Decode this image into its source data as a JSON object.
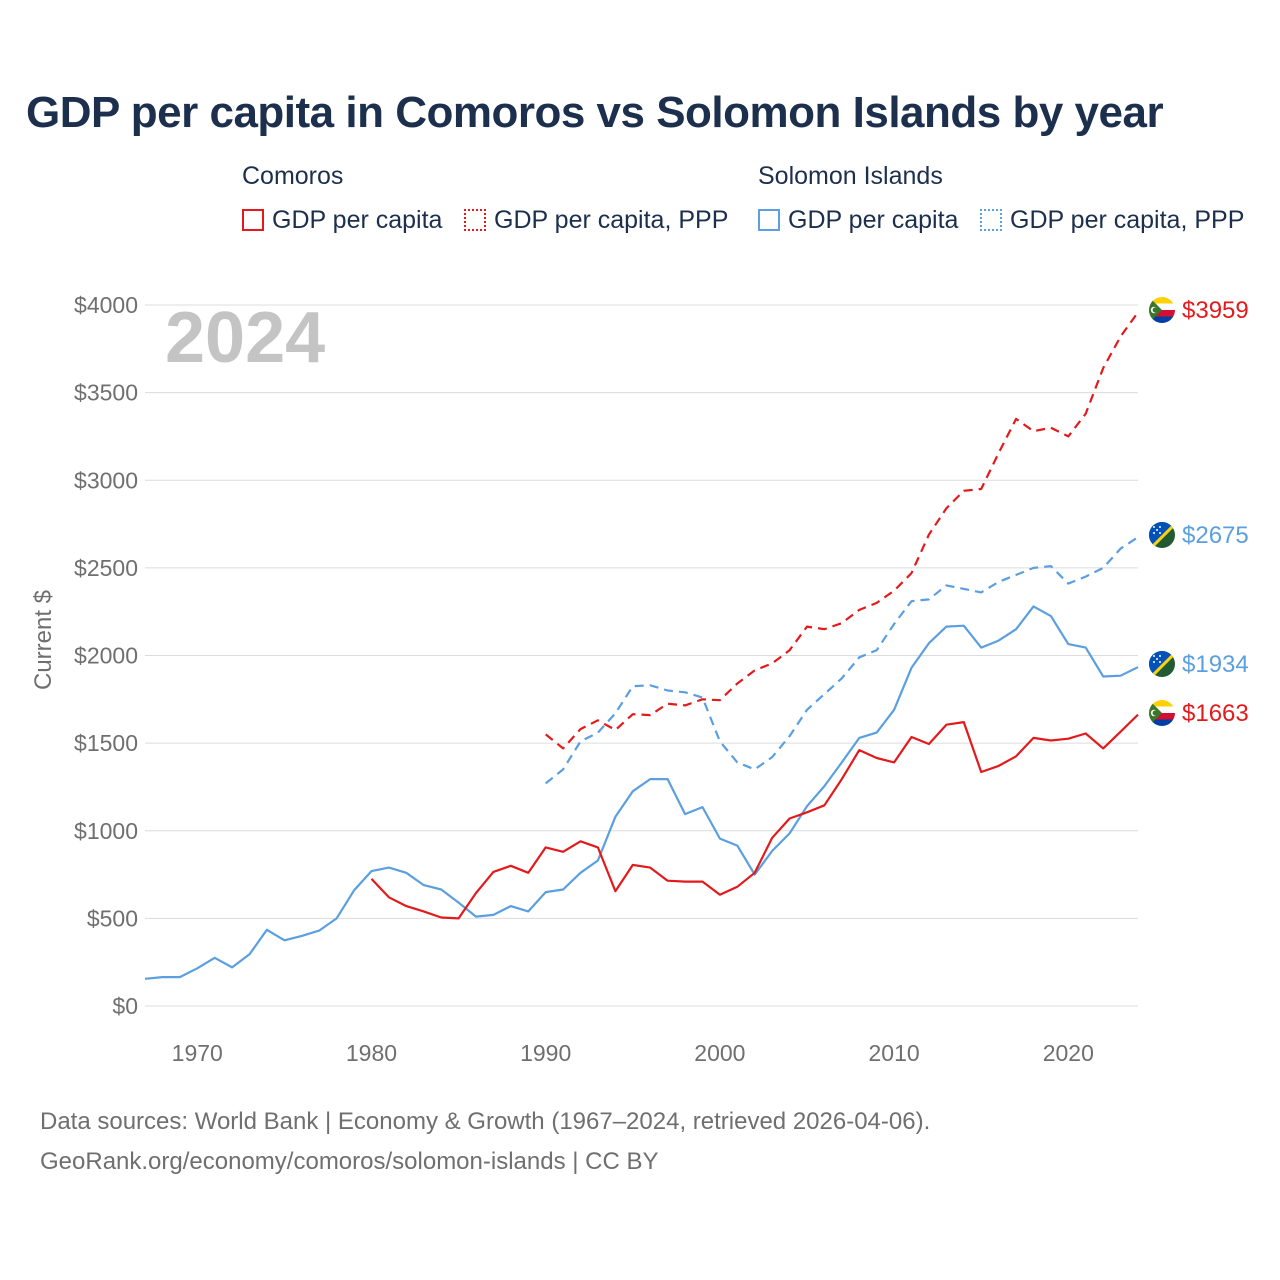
{
  "title": "GDP per capita in Comoros vs Solomon Islands by year",
  "legend": {
    "groups": [
      {
        "name": "Comoros",
        "items": [
          "GDP per capita",
          "GDP per capita, PPP"
        ],
        "color": "#e31a1c"
      },
      {
        "name": "Solomon Islands",
        "items": [
          "GDP per capita",
          "GDP per capita, PPP"
        ],
        "color": "#5b9fe0"
      }
    ]
  },
  "footer": {
    "line1": "Data sources: World Bank | Economy & Growth (1967–2024, retrieved 2026-04-06).",
    "line2": "GeoRank.org/economy/comoros/solomon-islands | CC BY"
  },
  "chart_data": {
    "type": "line",
    "year_label": "2024",
    "ylabel": "Current $",
    "xlim": [
      1967,
      2024
    ],
    "ylim": [
      0,
      4000
    ],
    "x_ticks": [
      1970,
      1980,
      1990,
      2000,
      2010,
      2020
    ],
    "y_ticks": [
      {
        "value": 0,
        "label": "$0"
      },
      {
        "value": 500,
        "label": "$500"
      },
      {
        "value": 1000,
        "label": "$1000"
      },
      {
        "value": 1500,
        "label": "$1500"
      },
      {
        "value": 2000,
        "label": "$2000"
      },
      {
        "value": 2500,
        "label": "$2500"
      },
      {
        "value": 3000,
        "label": "$3000"
      },
      {
        "value": 3500,
        "label": "$3500"
      },
      {
        "value": 4000,
        "label": "$4000"
      }
    ],
    "series": [
      {
        "name": "Comoros GDP per capita, PPP",
        "color": "#e31a1c",
        "dash": "dashed",
        "end_label": "$3959",
        "x": [
          1990,
          1991,
          1992,
          1993,
          1994,
          1995,
          1996,
          1997,
          1998,
          1999,
          2000,
          2001,
          2002,
          2003,
          2004,
          2005,
          2006,
          2007,
          2008,
          2009,
          2010,
          2011,
          2012,
          2013,
          2014,
          2015,
          2016,
          2017,
          2018,
          2019,
          2020,
          2021,
          2022,
          2023,
          2024
        ],
        "values": [
          1550,
          1470,
          1580,
          1630,
          1575,
          1665,
          1660,
          1725,
          1715,
          1750,
          1745,
          1840,
          1915,
          1955,
          2030,
          2165,
          2150,
          2185,
          2260,
          2300,
          2370,
          2470,
          2690,
          2840,
          2940,
          2950,
          3155,
          3350,
          3280,
          3300,
          3250,
          3380,
          3640,
          3820,
          3959
        ]
      },
      {
        "name": "Solomon Islands GDP per capita, PPP",
        "color": "#5b9fe0",
        "dash": "dashed",
        "end_label": "$2675",
        "x": [
          1990,
          1991,
          1992,
          1993,
          1994,
          1995,
          1996,
          1997,
          1998,
          1999,
          2000,
          2001,
          2002,
          2003,
          2004,
          2005,
          2006,
          2007,
          2008,
          2009,
          2010,
          2011,
          2012,
          2013,
          2014,
          2015,
          2016,
          2017,
          2018,
          2019,
          2020,
          2021,
          2022,
          2023,
          2024
        ],
        "values": [
          1270,
          1350,
          1510,
          1560,
          1670,
          1825,
          1830,
          1800,
          1790,
          1760,
          1510,
          1390,
          1350,
          1420,
          1540,
          1690,
          1780,
          1870,
          1990,
          2030,
          2180,
          2310,
          2320,
          2400,
          2380,
          2360,
          2420,
          2460,
          2500,
          2510,
          2410,
          2450,
          2500,
          2610,
          2675
        ]
      },
      {
        "name": "Solomon Islands GDP per capita",
        "color": "#5b9fe0",
        "dash": "solid",
        "end_label": "$1934",
        "x": [
          1967,
          1968,
          1969,
          1970,
          1971,
          1972,
          1973,
          1974,
          1975,
          1976,
          1977,
          1978,
          1979,
          1980,
          1981,
          1982,
          1983,
          1984,
          1985,
          1986,
          1987,
          1988,
          1989,
          1990,
          1991,
          1992,
          1993,
          1994,
          1995,
          1996,
          1997,
          1998,
          1999,
          2000,
          2001,
          2002,
          2003,
          2004,
          2005,
          2006,
          2007,
          2008,
          2009,
          2010,
          2011,
          2012,
          2013,
          2014,
          2015,
          2016,
          2017,
          2018,
          2019,
          2020,
          2021,
          2022,
          2023,
          2024
        ],
        "values": [
          155,
          165,
          165,
          215,
          275,
          220,
          295,
          435,
          375,
          400,
          430,
          500,
          660,
          770,
          790,
          760,
          690,
          665,
          590,
          510,
          520,
          570,
          540,
          650,
          665,
          760,
          830,
          1080,
          1225,
          1295,
          1295,
          1095,
          1135,
          955,
          915,
          750,
          885,
          985,
          1140,
          1255,
          1390,
          1530,
          1560,
          1690,
          1930,
          2070,
          2165,
          2170,
          2045,
          2085,
          2150,
          2280,
          2225,
          2065,
          2045,
          1880,
          1885,
          1934
        ]
      },
      {
        "name": "Comoros GDP per capita",
        "color": "#e31a1c",
        "dash": "solid",
        "end_label": "$1663",
        "x": [
          1980,
          1981,
          1982,
          1983,
          1984,
          1985,
          1986,
          1987,
          1988,
          1989,
          1990,
          1991,
          1992,
          1993,
          1994,
          1995,
          1996,
          1997,
          1998,
          1999,
          2000,
          2001,
          2002,
          2003,
          2004,
          2005,
          2006,
          2007,
          2008,
          2009,
          2010,
          2011,
          2012,
          2013,
          2014,
          2015,
          2016,
          2017,
          2018,
          2019,
          2020,
          2021,
          2022,
          2023,
          2024
        ],
        "values": [
          725,
          620,
          570,
          540,
          505,
          500,
          645,
          765,
          800,
          760,
          905,
          880,
          940,
          905,
          655,
          805,
          790,
          715,
          710,
          710,
          635,
          680,
          760,
          960,
          1070,
          1105,
          1145,
          1295,
          1460,
          1415,
          1390,
          1535,
          1495,
          1605,
          1620,
          1335,
          1370,
          1425,
          1530,
          1515,
          1525,
          1555,
          1470,
          1565,
          1663
        ]
      }
    ]
  }
}
